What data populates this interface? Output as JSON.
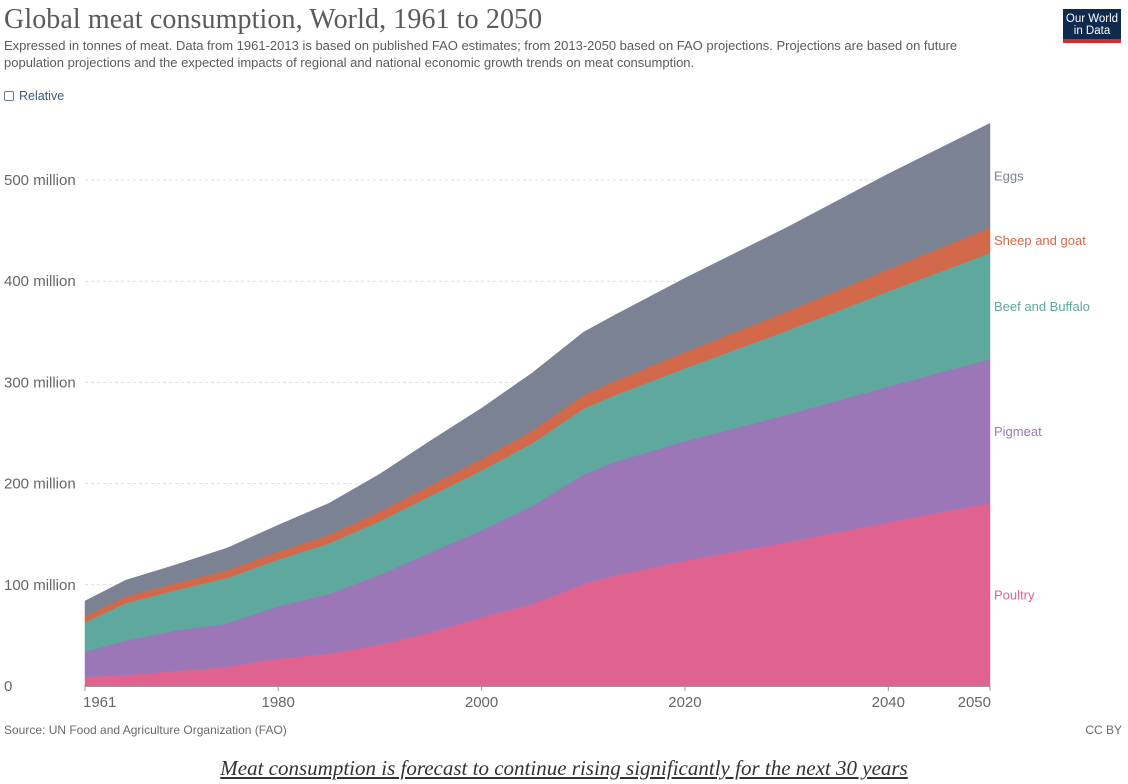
{
  "header": {
    "title": "Global meat consumption, World, 1961 to 2050",
    "subtitle": "Expressed in tonnes of meat. Data from 1961-2013 is based on published FAO estimates; from 2013-2050 based on FAO projections. Projections are based on future population projections and the expected impacts of regional and national economic growth trends on meat consumption.",
    "logo_line1": "Our World",
    "logo_line2": "in Data",
    "relative_label": "Relative"
  },
  "footer": {
    "source": "Source: UN Food and Agriculture Organization (FAO)",
    "license": "CC BY",
    "caption": "Meat consumption is forecast to continue rising significantly for the next 30 years"
  },
  "colors": {
    "poultry": "#e0628f",
    "pigmeat": "#9b77b8",
    "beef": "#5fa89e",
    "sheep": "#d2694a",
    "eggs": "#7a8293",
    "grid": "#dddddd",
    "axis_text": "#666666"
  },
  "chart_data": {
    "type": "area",
    "stacked": true,
    "x_unit": "year",
    "y_unit": "tonnes",
    "xlim": [
      1961,
      2050
    ],
    "ylim": [
      0,
      560000000
    ],
    "y_ticks": [
      0,
      100000000,
      200000000,
      300000000,
      400000000,
      500000000
    ],
    "y_tick_labels": [
      "0",
      "100 million",
      "200 million",
      "300 million",
      "400 million",
      "500 million"
    ],
    "x_ticks": [
      1961,
      1980,
      2000,
      2020,
      2040,
      2050
    ],
    "x_tick_labels": [
      "1961",
      "1980",
      "2000",
      "2020",
      "2040",
      "2050"
    ],
    "grid": "horizontal dashed",
    "legend": "right, inline labels",
    "x": [
      1961,
      1965,
      1970,
      1975,
      1980,
      1985,
      1990,
      1995,
      2000,
      2005,
      2010,
      2013,
      2020,
      2030,
      2040,
      2050
    ],
    "series": [
      {
        "name": "Poultry",
        "color": "#e0628f",
        "values": [
          9000000,
          11000000,
          15000000,
          19000000,
          27000000,
          32000000,
          41000000,
          53000000,
          68000000,
          81000000,
          101000000,
          109000000,
          124000000,
          142000000,
          162000000,
          181000000
        ]
      },
      {
        "name": "Pigmeat",
        "color": "#9b77b8",
        "values": [
          25000000,
          34000000,
          40000000,
          43000000,
          52000000,
          59000000,
          69000000,
          79000000,
          86000000,
          97000000,
          108000000,
          112000000,
          118000000,
          126000000,
          134000000,
          142000000
        ]
      },
      {
        "name": "Beef and Buffalo",
        "color": "#5fa89e",
        "values": [
          29000000,
          37000000,
          40000000,
          45000000,
          46000000,
          50000000,
          53000000,
          56000000,
          59000000,
          62000000,
          65000000,
          66000000,
          72000000,
          83000000,
          94000000,
          105000000
        ]
      },
      {
        "name": "Sheep and goat",
        "color": "#d2694a",
        "values": [
          6000000,
          6500000,
          7000000,
          7500000,
          8000000,
          8500000,
          9500000,
          10500000,
          11500000,
          12500000,
          13500000,
          14000000,
          16000000,
          19000000,
          22000000,
          25000000
        ]
      },
      {
        "name": "Eggs",
        "color": "#7a8293",
        "values": [
          15000000,
          16000000,
          18000000,
          22000000,
          26000000,
          31000000,
          37000000,
          44000000,
          50000000,
          57000000,
          62000000,
          65000000,
          73000000,
          83000000,
          94000000,
          103000000
        ]
      }
    ]
  }
}
